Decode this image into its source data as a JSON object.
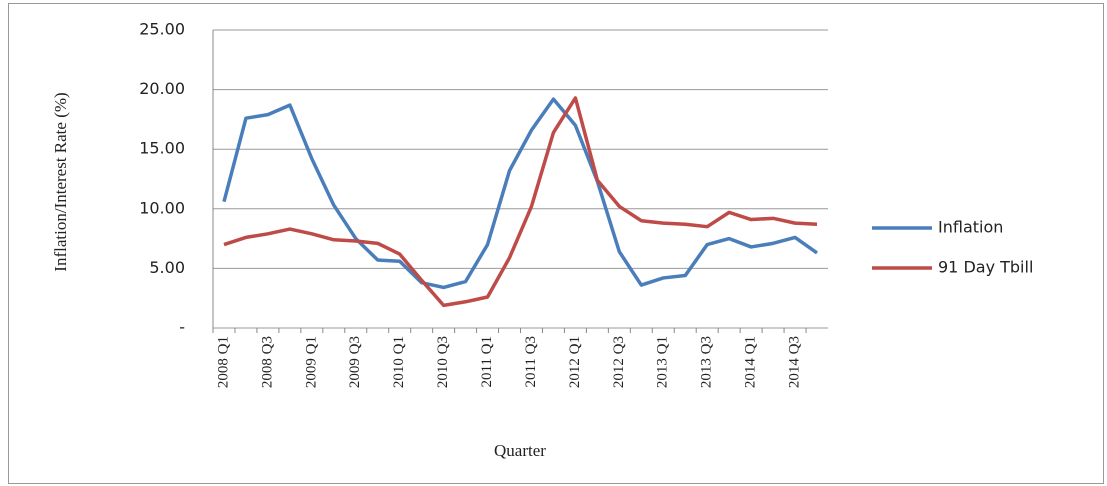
{
  "chart_data": {
    "type": "line",
    "y_axis_label": "Inflation/Interest Rate (%)",
    "x_axis_label": "Quarter",
    "categories": [
      "2008 Q1",
      null,
      "2008 Q3",
      null,
      "2009 Q1",
      null,
      "2009 Q3",
      null,
      "2010 Q1",
      null,
      "2010 Q3",
      null,
      "2011 Q1",
      null,
      "2011 Q3",
      null,
      "2012 Q1",
      null,
      "2012 Q3",
      null,
      "2013 Q1",
      null,
      "2013 Q3",
      null,
      "2014 Q1",
      null,
      "2014 Q3",
      null
    ],
    "series": [
      {
        "name": "Inflation",
        "color": "#4a7ebb",
        "values": [
          10.6,
          17.6,
          17.9,
          18.7,
          14.2,
          10.3,
          7.5,
          5.7,
          5.6,
          3.8,
          3.4,
          3.9,
          7.0,
          13.2,
          16.6,
          19.2,
          17.0,
          12.3,
          6.4,
          3.6,
          4.2,
          4.4,
          7.0,
          7.5,
          6.8,
          7.1,
          7.6,
          6.3
        ]
      },
      {
        "name": "91 Day Tbill",
        "color": "#be4b48",
        "values": [
          7.0,
          7.6,
          7.9,
          8.3,
          7.9,
          7.4,
          7.3,
          7.1,
          6.2,
          4.0,
          1.9,
          2.2,
          2.6,
          5.9,
          10.2,
          16.4,
          19.3,
          12.4,
          10.2,
          9.0,
          8.8,
          8.7,
          8.5,
          9.7,
          9.1,
          9.2,
          8.8,
          8.7
        ]
      }
    ],
    "ylim": [
      0,
      25
    ],
    "yticks": [
      {
        "value": 0,
        "label": "-"
      },
      {
        "value": 5,
        "label": "5.00"
      },
      {
        "value": 10,
        "label": "10.00"
      },
      {
        "value": 15,
        "label": "15.00"
      },
      {
        "value": 20,
        "label": "20.00"
      },
      {
        "value": 25,
        "label": "25.00"
      }
    ],
    "grid": true
  }
}
